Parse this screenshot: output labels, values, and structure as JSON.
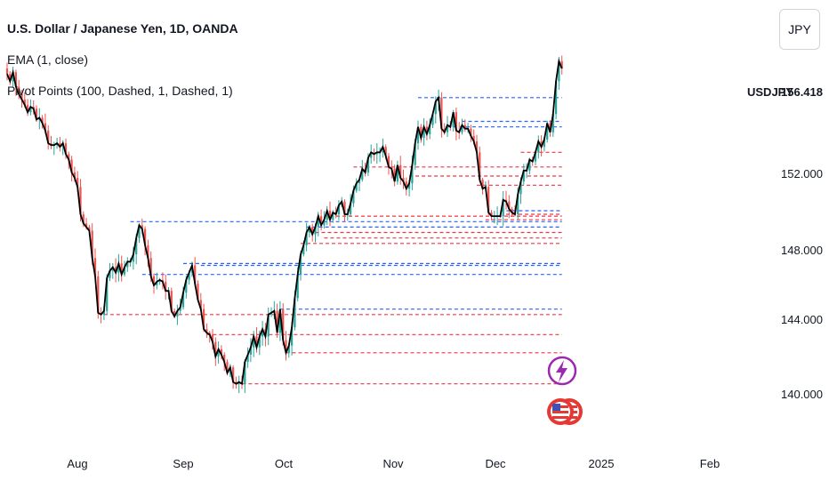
{
  "header": {
    "title": "U.S. Dollar / Japanese Yen, 1D, OANDA",
    "indicator_1": "EMA (1, close)",
    "indicator_2": "Pivot Points (100, Dashed, 1, Dashed, 1)",
    "currency_button": "JPY"
  },
  "last_price": {
    "symbol": "USDJPY",
    "value": "156.418"
  },
  "colors": {
    "up": "#26a69a",
    "down": "#ef5350",
    "ema": "#000000",
    "pivot_high": "#2962ff",
    "pivot_low": "#f23645",
    "event_bolt": "#9c27b0"
  },
  "icons": [
    "lightning-event-icon",
    "us-flag-event-icon"
  ],
  "chart_data": {
    "type": "candlestick",
    "ylim": [
      138.6,
      160.5
    ],
    "y_ticks": [
      "140.000",
      "144.000",
      "148.000",
      "152.000"
    ],
    "y_tick_values": [
      140,
      144,
      148,
      152
    ],
    "x_ticks": [
      "Aug",
      "Sep",
      "Oct",
      "Nov",
      "Dec",
      "2025",
      "Feb"
    ],
    "grid": false,
    "closes": [
      157.6,
      157.2,
      157.7,
      156.9,
      156.5,
      156.2,
      155.9,
      155.5,
      155.8,
      155.7,
      155.1,
      155.2,
      154.9,
      154.5,
      153.8,
      153.7,
      153.7,
      153.8,
      153.6,
      153.8,
      153.2,
      152.9,
      152.2,
      151.9,
      151.4,
      149.9,
      149.4,
      149.2,
      149.0,
      147.5,
      146.5,
      144.5,
      144.4,
      144.6,
      146.4,
      146.8,
      147.0,
      146.7,
      147.2,
      146.6,
      147.0,
      147.3,
      147.3,
      147.7,
      148.6,
      149.3,
      149.1,
      148.2,
      147.5,
      146.5,
      146.0,
      146.2,
      146.3,
      146.2,
      145.7,
      145.7,
      144.6,
      144.3,
      144.6,
      144.8,
      145.6,
      146.3,
      146.7,
      147.1,
      146.1,
      145.2,
      144.7,
      143.6,
      143.4,
      143.3,
      142.9,
      142.1,
      142.5,
      142.2,
      141.8,
      141.2,
      141.5,
      140.7,
      140.6,
      140.7,
      140.6,
      141.8,
      142.2,
      142.6,
      143.2,
      142.6,
      143.2,
      143.6,
      143.2,
      144.4,
      144.5,
      144.6,
      143.4,
      144.7,
      143.0,
      142.3,
      142.7,
      143.7,
      145.3,
      146.6,
      147.7,
      148.2,
      148.9,
      149.2,
      148.8,
      149.2,
      149.8,
      149.3,
      149.6,
      150.1,
      149.6,
      150.0,
      149.9,
      150.4,
      150.6,
      149.9,
      149.9,
      150.5,
      151.2,
      151.6,
      151.8,
      152.4,
      152.2,
      153.0,
      153.3,
      153.2,
      153.3,
      153.3,
      153.6,
      153.1,
      152.5,
      152.4,
      151.7,
      152.6,
      151.9,
      151.7,
      151.3,
      151.6,
      152.6,
      153.8,
      154.7,
      154.1,
      154.7,
      154.3,
      154.8,
      155.4,
      156.1,
      156.3,
      154.6,
      154.4,
      154.8,
      154.7,
      155.5,
      154.5,
      154.4,
      154.8,
      154.6,
      154.6,
      154.2,
      153.9,
      153.3,
      151.8,
      151.3,
      151.4,
      150.0,
      149.8,
      149.8,
      149.8,
      149.8,
      150.7,
      150.6,
      150.2,
      150.0,
      149.9,
      151.0,
      151.7,
      152.3,
      152.3,
      152.9,
      152.8,
      153.3,
      153.9,
      153.6,
      154.0,
      154.9,
      154.4,
      155.4,
      157.2,
      158.3,
      157.9
    ]
  }
}
